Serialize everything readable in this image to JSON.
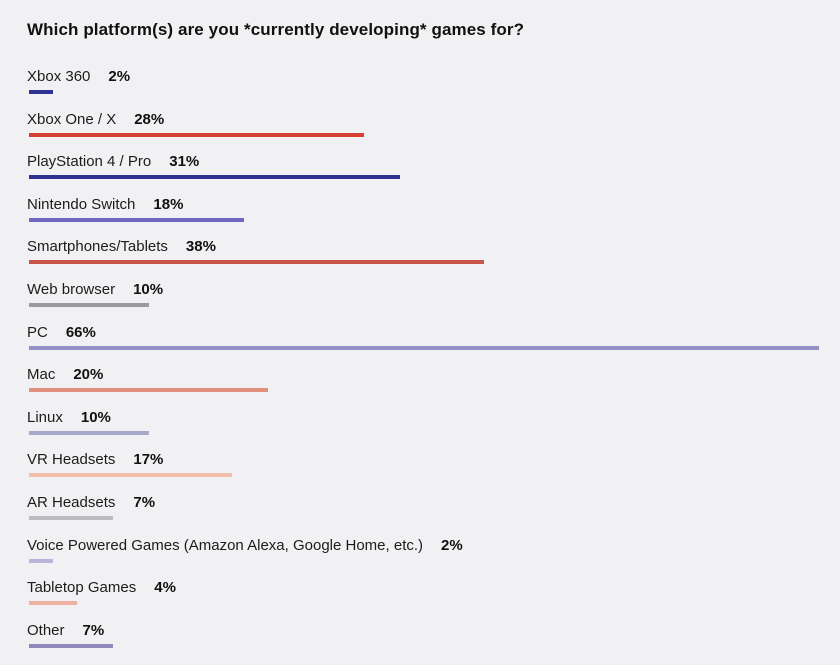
{
  "chart_data": {
    "type": "bar",
    "orientation": "horizontal",
    "title": "Which platform(s) are you *currently developing* games for?",
    "xlabel": "",
    "ylabel": "",
    "unit": "%",
    "xlim": [
      0,
      66
    ],
    "grid": false,
    "legend": "none",
    "categories": [
      "Xbox 360",
      "Xbox One / X",
      "PlayStation 4 / Pro",
      "Nintendo Switch",
      "Smartphones/Tablets",
      "Web browser",
      "PC",
      "Mac",
      "Linux",
      "VR Headsets",
      "AR Headsets",
      "Voice Powered Games (Amazon Alexa, Google Home, etc.)",
      "Tabletop Games",
      "Other"
    ],
    "values": [
      2,
      28,
      31,
      18,
      38,
      10,
      66,
      20,
      10,
      17,
      7,
      2,
      4,
      7
    ],
    "value_labels": [
      "2%",
      "28%",
      "31%",
      "18%",
      "38%",
      "10%",
      "66%",
      "20%",
      "10%",
      "17%",
      "7%",
      "2%",
      "4%",
      "7%"
    ],
    "colors": [
      "#2e3191",
      "#d6422f",
      "#2e3191",
      "#7166c1",
      "#c95448",
      "#9a9a9c",
      "#9590c8",
      "#e0917e",
      "#a8a8c8",
      "#f2bfa8",
      "#bcbcbe",
      "#b8b4dc",
      "#eeb0a0",
      "#8e88bb"
    ]
  }
}
